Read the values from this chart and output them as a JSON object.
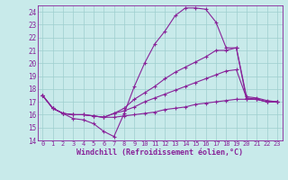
{
  "xlabel": "Windchill (Refroidissement éolien,°C)",
  "ylabel": "",
  "xlim": [
    -0.5,
    23.5
  ],
  "ylim": [
    14,
    24.5
  ],
  "xticks": [
    0,
    1,
    2,
    3,
    4,
    5,
    6,
    7,
    8,
    9,
    10,
    11,
    12,
    13,
    14,
    15,
    16,
    17,
    18,
    19,
    20,
    21,
    22,
    23
  ],
  "yticks": [
    14,
    15,
    16,
    17,
    18,
    19,
    20,
    21,
    22,
    23,
    24
  ],
  "bg_color": "#c8eaea",
  "line_color": "#882299",
  "grid_color": "#9ecece",
  "lines": [
    {
      "x": [
        0,
        1,
        2,
        3,
        4,
        5,
        6,
        7,
        8,
        9,
        10,
        11,
        12,
        13,
        14,
        15,
        16,
        17,
        18,
        19,
        20,
        21,
        22,
        23
      ],
      "y": [
        17.5,
        16.5,
        16.1,
        15.7,
        15.6,
        15.3,
        14.7,
        14.3,
        16.1,
        18.2,
        20.0,
        21.5,
        22.5,
        23.7,
        24.3,
        24.3,
        24.2,
        23.2,
        21.2,
        21.2,
        17.2,
        17.2,
        17.0,
        17.0
      ]
    },
    {
      "x": [
        0,
        1,
        2,
        3,
        4,
        5,
        6,
        7,
        8,
        9,
        10,
        11,
        12,
        13,
        14,
        15,
        16,
        17,
        18,
        19,
        20,
        21,
        22,
        23
      ],
      "y": [
        17.5,
        16.5,
        16.1,
        16.0,
        16.0,
        15.9,
        15.8,
        16.1,
        16.5,
        17.2,
        17.7,
        18.2,
        18.8,
        19.3,
        19.7,
        20.1,
        20.5,
        21.0,
        21.0,
        21.2,
        17.4,
        17.3,
        17.1,
        17.0
      ]
    },
    {
      "x": [
        0,
        1,
        2,
        3,
        4,
        5,
        6,
        7,
        8,
        9,
        10,
        11,
        12,
        13,
        14,
        15,
        16,
        17,
        18,
        19,
        20,
        21,
        22,
        23
      ],
      "y": [
        17.5,
        16.5,
        16.1,
        16.0,
        16.0,
        15.9,
        15.8,
        16.1,
        16.3,
        16.6,
        17.0,
        17.3,
        17.6,
        17.9,
        18.2,
        18.5,
        18.8,
        19.1,
        19.4,
        19.5,
        17.3,
        17.2,
        17.0,
        17.0
      ]
    },
    {
      "x": [
        0,
        1,
        2,
        3,
        4,
        5,
        6,
        7,
        8,
        9,
        10,
        11,
        12,
        13,
        14,
        15,
        16,
        17,
        18,
        19,
        20,
        21,
        22,
        23
      ],
      "y": [
        17.5,
        16.5,
        16.1,
        16.0,
        16.0,
        15.9,
        15.8,
        15.8,
        15.9,
        16.0,
        16.1,
        16.2,
        16.4,
        16.5,
        16.6,
        16.8,
        16.9,
        17.0,
        17.1,
        17.2,
        17.2,
        17.2,
        17.0,
        17.0
      ]
    }
  ]
}
